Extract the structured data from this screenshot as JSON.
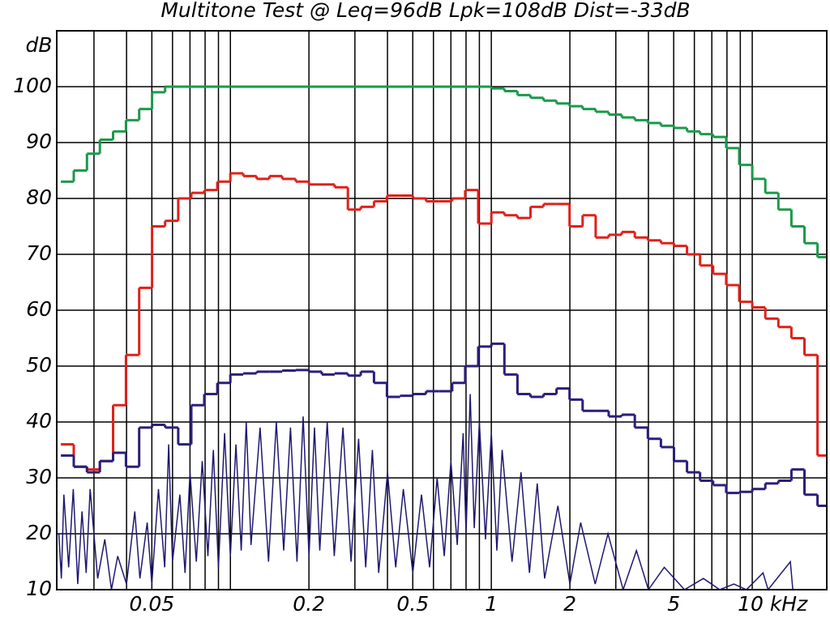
{
  "chart_data": {
    "type": "step",
    "title": "Multitone Test @ Leq=96dB Lpk=108dB Dist=-33dB",
    "ylabel": "dB",
    "xscale": "log",
    "grid": true,
    "xlim": [
      0.0216,
      19.3
    ],
    "ylim": [
      10,
      110
    ],
    "yticks": [
      10,
      20,
      30,
      40,
      50,
      60,
      70,
      80,
      90,
      100
    ],
    "xticks": [
      0.05,
      0.2,
      0.5,
      1,
      2,
      5,
      {
        "value": 10,
        "label": "10 kHz"
      }
    ],
    "xminor": [
      0.03,
      0.04,
      0.06,
      0.07,
      0.08,
      0.09,
      0.1,
      0.3,
      0.4,
      0.6,
      0.7,
      0.8,
      0.9,
      3,
      4,
      6,
      7,
      8,
      9
    ],
    "x": [
      0.0224,
      0.0251,
      0.0282,
      0.0316,
      0.0355,
      0.0398,
      0.0447,
      0.0501,
      0.0562,
      0.0631,
      0.0708,
      0.0794,
      0.0891,
      0.1,
      0.112,
      0.126,
      0.141,
      0.158,
      0.178,
      0.2,
      0.224,
      0.251,
      0.282,
      0.316,
      0.355,
      0.398,
      0.447,
      0.501,
      0.562,
      0.631,
      0.708,
      0.794,
      0.891,
      1.0,
      1.122,
      1.259,
      1.413,
      1.585,
      1.778,
      1.995,
      2.239,
      2.512,
      2.818,
      3.162,
      3.548,
      3.981,
      4.467,
      5.012,
      5.623,
      6.31,
      7.079,
      7.943,
      8.913,
      10.0,
      11.22,
      12.589,
      14.125,
      15.849,
      17.783
    ],
    "series": [
      {
        "color": "#1a9a4a",
        "values": [
          83,
          85,
          88,
          90.5,
          92,
          94,
          96,
          99,
          100,
          100,
          100,
          100,
          100,
          100,
          100,
          100,
          100,
          100,
          100,
          100,
          100,
          100,
          100,
          100,
          100,
          100,
          100,
          100,
          100,
          100,
          100,
          100,
          100,
          99.7,
          99.2,
          98.5,
          98,
          97.5,
          97,
          96.5,
          96,
          95.5,
          95,
          94.5,
          94,
          93.5,
          93,
          92.6,
          92,
          91.5,
          91,
          89,
          86,
          83.5,
          81,
          78,
          75,
          72,
          69.5
        ]
      },
      {
        "color": "#e0201a",
        "values": [
          36,
          32,
          31.5,
          33,
          43,
          52,
          64,
          75,
          76,
          80,
          81,
          81.5,
          83,
          84.5,
          84,
          83.5,
          84,
          83.5,
          83,
          82.5,
          82.5,
          82,
          78,
          78.5,
          79.5,
          80.5,
          80.5,
          80,
          79.5,
          79.5,
          80,
          81.5,
          75.5,
          77.5,
          77,
          76.5,
          78.5,
          79,
          79,
          75,
          77,
          73,
          73.5,
          74,
          73,
          72.5,
          72,
          71.5,
          70,
          68,
          66.5,
          64.5,
          61.5,
          60.5,
          58.5,
          57,
          55,
          52,
          34
        ]
      },
      {
        "color": "#2b1f7a",
        "values": [
          34,
          32,
          31,
          33,
          34.5,
          32,
          39,
          39.5,
          39,
          36,
          43,
          45,
          47,
          48.5,
          48.7,
          49,
          49,
          49.2,
          49.3,
          49,
          48.5,
          48.7,
          48.3,
          49,
          47,
          44.5,
          44.7,
          45,
          45.5,
          45.5,
          47,
          50,
          53.5,
          54,
          48.5,
          45,
          44.5,
          45,
          46,
          44,
          42,
          42,
          41,
          41.3,
          39,
          37,
          35.5,
          33,
          31,
          29.5,
          28.7,
          27.3,
          27.5,
          28,
          29,
          29.5,
          31.5,
          27,
          25
        ]
      }
    ],
    "spectrum": {
      "color": "#1f1870",
      "x": [
        0.022,
        0.0225,
        0.023,
        0.024,
        0.025,
        0.026,
        0.027,
        0.028,
        0.029,
        0.031,
        0.033,
        0.035,
        0.037,
        0.04,
        0.043,
        0.045,
        0.048,
        0.05,
        0.053,
        0.056,
        0.058,
        0.06,
        0.064,
        0.067,
        0.07,
        0.074,
        0.078,
        0.082,
        0.086,
        0.09,
        0.095,
        0.1,
        0.105,
        0.11,
        0.115,
        0.12,
        0.13,
        0.14,
        0.15,
        0.16,
        0.17,
        0.18,
        0.19,
        0.2,
        0.21,
        0.22,
        0.235,
        0.25,
        0.27,
        0.29,
        0.31,
        0.33,
        0.35,
        0.37,
        0.4,
        0.43,
        0.46,
        0.5,
        0.54,
        0.58,
        0.62,
        0.66,
        0.7,
        0.74,
        0.78,
        0.8,
        0.83,
        0.86,
        0.9,
        0.95,
        1.0,
        1.05,
        1.1,
        1.2,
        1.3,
        1.4,
        1.5,
        1.6,
        1.8,
        2.0,
        2.2,
        2.5,
        2.8,
        3.2,
        3.6,
        4.0,
        4.6,
        5.5,
        6.5,
        7.5,
        8.5,
        9.5,
        11,
        11.5,
        14,
        14.3
      ],
      "values": [
        20,
        12,
        27,
        14,
        28,
        11,
        24,
        13,
        28,
        12,
        19,
        10,
        16,
        11,
        24,
        12,
        22,
        11,
        28,
        14,
        36,
        15,
        27,
        13,
        31,
        15,
        33,
        16,
        35,
        14,
        38,
        16,
        36,
        17,
        40,
        18,
        39,
        15,
        40,
        17,
        39,
        15,
        41,
        16,
        39,
        17,
        40,
        16,
        39,
        15,
        37,
        14,
        35,
        13,
        31,
        14,
        28,
        13,
        27,
        14,
        30,
        16,
        33,
        18,
        38,
        20,
        45,
        21,
        40,
        19,
        38,
        17,
        35,
        15,
        31,
        13,
        29,
        12,
        25,
        11,
        22,
        11,
        20,
        10,
        17,
        10,
        14,
        10,
        12,
        10,
        11,
        10,
        13,
        10,
        15,
        10
      ]
    }
  }
}
